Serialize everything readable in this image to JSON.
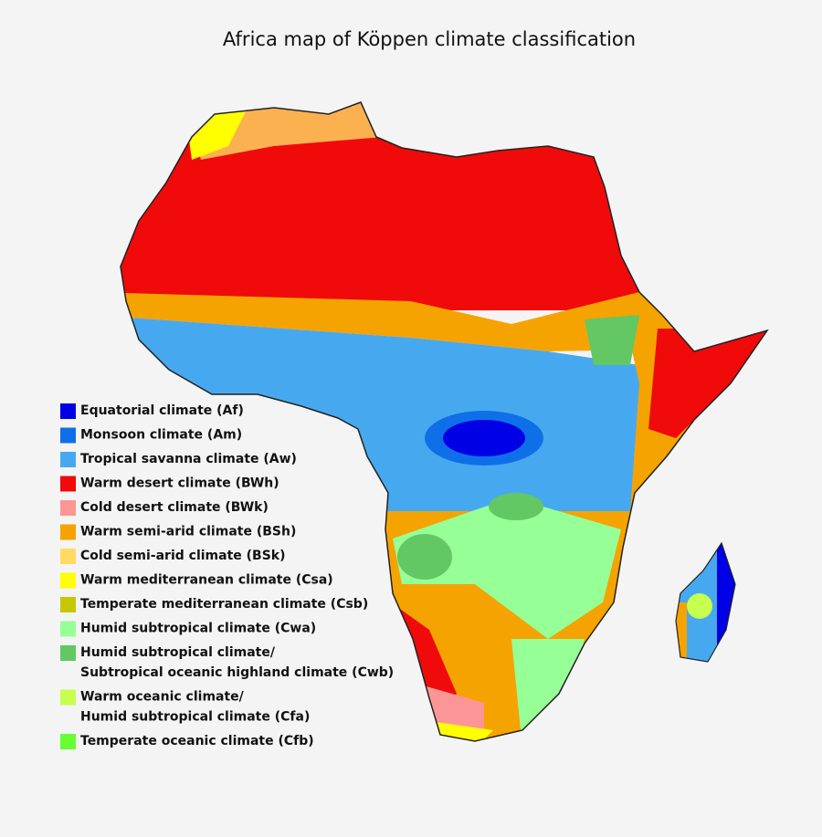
{
  "title": "Africa map of Köppen climate classification",
  "legend": [
    {
      "lines": [
        "Equatorial climate (Af)"
      ],
      "color": "#0000e6"
    },
    {
      "lines": [
        "Monsoon climate (Am)"
      ],
      "color": "#0f6fe8"
    },
    {
      "lines": [
        "Tropical savanna climate (Aw)"
      ],
      "color": "#46a9f0"
    },
    {
      "lines": [
        "Warm desert climate (BWh)"
      ],
      "color": "#f00a0a"
    },
    {
      "lines": [
        "Cold desert climate (BWk)"
      ],
      "color": "#fc9696"
    },
    {
      "lines": [
        "Warm semi-arid climate (BSh)"
      ],
      "color": "#f5a300"
    },
    {
      "lines": [
        "Cold semi-arid climate (BSk)"
      ],
      "color": "#ffdb63"
    },
    {
      "lines": [
        "Warm mediterranean climate (Csa)"
      ],
      "color": "#ffff00"
    },
    {
      "lines": [
        "Temperate mediterranean climate (Csb)"
      ],
      "color": "#c6c700"
    },
    {
      "lines": [
        "Humid subtropical climate (Cwa)"
      ],
      "color": "#96ff96"
    },
    {
      "lines": [
        "Humid subtropical climate/",
        "Subtropical oceanic highland climate (Cwb)"
      ],
      "color": "#63c764"
    },
    {
      "lines": [
        "Warm oceanic climate/",
        "Humid subtropical climate (Cfa)"
      ],
      "color": "#c6ff4e"
    },
    {
      "lines": [
        "Temperate oceanic climate (Cfb)"
      ],
      "color": "#66ff33"
    }
  ]
}
